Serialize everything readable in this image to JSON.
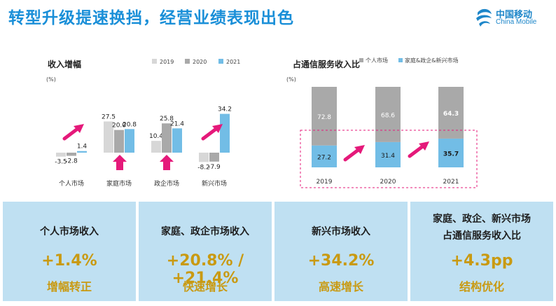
{
  "header": {
    "title": "转型升级提速换挡，经营业绩表现出色"
  },
  "logo": {
    "cn": "中国移动",
    "en": "China Mobile"
  },
  "chart_data": [
    {
      "type": "bar",
      "title": "收入增幅",
      "ylabel": "(%)",
      "categories": [
        "个人市场",
        "家庭市场",
        "政企市场",
        "新兴市场"
      ],
      "series": [
        {
          "name": "2019",
          "color": "#d7d7d7",
          "values": [
            -3.5,
            27.5,
            10.4,
            -8.2
          ]
        },
        {
          "name": "2020",
          "color": "#a9a9a9",
          "values": [
            -2.8,
            20.0,
            25.8,
            -7.9
          ]
        },
        {
          "name": "2021",
          "color": "#72bde6",
          "values": [
            1.4,
            20.8,
            21.4,
            34.2
          ]
        }
      ],
      "value_labels": [
        [
          "-3.5",
          "27.5",
          "10.4",
          "-8.2"
        ],
        [
          "-2.8",
          "20.0",
          "25.8",
          "-7.9"
        ],
        [
          "1.4",
          "20.8",
          "21.4",
          "34.2"
        ]
      ],
      "legend": "top-right",
      "grid": false
    },
    {
      "type": "bar",
      "stacked": true,
      "title": "占通信服务收入比",
      "ylabel": "(%)",
      "categories": [
        "2019",
        "2020",
        "2021"
      ],
      "series": [
        {
          "name": "家庭&政企&新兴市场",
          "color": "#72bde6",
          "values": [
            27.2,
            31.4,
            35.7
          ]
        },
        {
          "name": "个人市场",
          "color": "#a9a9a9",
          "values": [
            72.8,
            68.6,
            64.3
          ]
        }
      ],
      "value_labels": [
        [
          "27.2",
          "31.4",
          "35.7"
        ],
        [
          "72.8",
          "68.6",
          "64.3"
        ]
      ],
      "legend": "top",
      "grid": false
    }
  ],
  "cards": [
    {
      "label": "个人市场收入",
      "value": "+1.4%",
      "note": "增幅转正"
    },
    {
      "label": "家庭、政企市场收入",
      "value": "+20.8% / +21.4%",
      "note": "快速增长"
    },
    {
      "label": "新兴市场收入",
      "value": "+34.2%",
      "note": "高速增长"
    },
    {
      "label": "家庭、政企、新兴市场",
      "label2": "占通信服务收入比",
      "value": "+4.3pp",
      "note": "结构优化"
    }
  ],
  "colors": {
    "accent_arrow": "#e5197a",
    "title_blue": "#1a8fd8",
    "card_bg": "#bfe0f2",
    "card_value": "#c99a12"
  }
}
